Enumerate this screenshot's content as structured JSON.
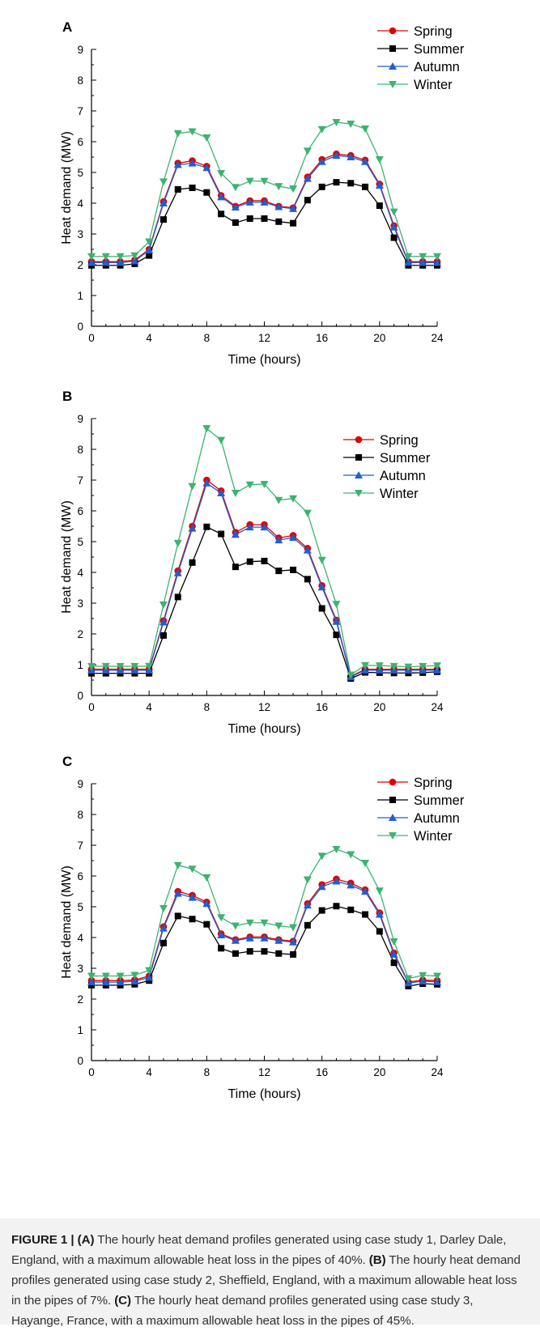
{
  "chart_data": [
    {
      "type": "line",
      "panel_label": "A",
      "xlabel": "Time (hours)",
      "ylabel": "Heat demand (MW)",
      "xlim": [
        0,
        24
      ],
      "ylim": [
        0,
        9
      ],
      "xticks": [
        0,
        4,
        8,
        12,
        16,
        20,
        24
      ],
      "yticks": [
        0,
        1,
        2,
        3,
        4,
        5,
        6,
        7,
        8,
        9
      ],
      "grid": false,
      "legend_position": "top-right",
      "x": [
        0,
        1,
        2,
        3,
        4,
        5,
        6,
        7,
        8,
        9,
        10,
        11,
        12,
        13,
        14,
        15,
        16,
        17,
        18,
        19,
        20,
        21,
        22,
        23,
        24
      ],
      "series": [
        {
          "name": "Spring",
          "color": "#e00000",
          "marker": "circle",
          "values": [
            2.1,
            2.1,
            2.1,
            2.15,
            2.5,
            4.05,
            5.3,
            5.38,
            5.2,
            4.25,
            3.9,
            4.08,
            4.08,
            3.9,
            3.85,
            4.85,
            5.42,
            5.6,
            5.55,
            5.4,
            4.62,
            3.27,
            2.1,
            2.1,
            2.1
          ]
        },
        {
          "name": "Summer",
          "color": "#000000",
          "marker": "square",
          "values": [
            1.98,
            1.98,
            1.98,
            2.03,
            2.3,
            3.47,
            4.45,
            4.5,
            4.35,
            3.65,
            3.37,
            3.5,
            3.5,
            3.4,
            3.35,
            4.1,
            4.53,
            4.68,
            4.65,
            4.53,
            3.92,
            2.88,
            1.98,
            1.98,
            1.98
          ]
        },
        {
          "name": "Autumn",
          "color": "#1f5fd0",
          "marker": "triangle-up",
          "values": [
            2.07,
            2.07,
            2.07,
            2.12,
            2.47,
            4.0,
            5.25,
            5.3,
            5.15,
            4.2,
            3.87,
            4.03,
            4.03,
            3.88,
            3.82,
            4.8,
            5.35,
            5.55,
            5.5,
            5.35,
            4.58,
            3.22,
            2.07,
            2.07,
            2.07
          ]
        },
        {
          "name": "Winter",
          "color": "#3cb371",
          "marker": "triangle-down",
          "values": [
            2.27,
            2.27,
            2.27,
            2.3,
            2.75,
            4.7,
            6.27,
            6.33,
            6.13,
            4.97,
            4.52,
            4.72,
            4.72,
            4.55,
            4.47,
            5.7,
            6.4,
            6.63,
            6.58,
            6.42,
            5.42,
            3.72,
            2.27,
            2.27,
            2.27
          ]
        }
      ]
    },
    {
      "type": "line",
      "panel_label": "B",
      "xlabel": "Time (hours)",
      "ylabel": "Heat demand (MW)",
      "xlim": [
        0,
        24
      ],
      "ylim": [
        0,
        9
      ],
      "xticks": [
        0,
        4,
        8,
        12,
        16,
        20,
        24
      ],
      "yticks": [
        0,
        1,
        2,
        3,
        4,
        5,
        6,
        7,
        8,
        9
      ],
      "grid": false,
      "legend_position": "top-right",
      "x": [
        0,
        1,
        2,
        3,
        4,
        5,
        6,
        7,
        8,
        9,
        10,
        11,
        12,
        13,
        14,
        15,
        16,
        17,
        18,
        19,
        20,
        21,
        22,
        23,
        24
      ],
      "series": [
        {
          "name": "Spring",
          "color": "#e00000",
          "marker": "circle",
          "values": [
            0.85,
            0.85,
            0.85,
            0.85,
            0.85,
            2.43,
            4.05,
            5.5,
            7.0,
            6.65,
            5.3,
            5.55,
            5.55,
            5.12,
            5.2,
            4.78,
            3.57,
            2.45,
            0.62,
            0.85,
            0.85,
            0.85,
            0.85,
            0.85,
            0.85
          ]
        },
        {
          "name": "Summer",
          "color": "#000000",
          "marker": "square",
          "values": [
            0.72,
            0.72,
            0.72,
            0.72,
            0.72,
            1.95,
            3.2,
            4.32,
            5.48,
            5.25,
            4.18,
            4.35,
            4.37,
            4.05,
            4.08,
            3.78,
            2.83,
            1.97,
            0.55,
            0.75,
            0.74,
            0.73,
            0.73,
            0.74,
            0.77
          ]
        },
        {
          "name": "Autumn",
          "color": "#1f5fd0",
          "marker": "triangle-up",
          "values": [
            0.82,
            0.82,
            0.82,
            0.82,
            0.82,
            2.38,
            3.98,
            5.43,
            6.9,
            6.58,
            5.23,
            5.47,
            5.47,
            5.05,
            5.13,
            4.72,
            3.52,
            2.4,
            0.6,
            0.82,
            0.82,
            0.82,
            0.82,
            0.82,
            0.82
          ]
        },
        {
          "name": "Winter",
          "color": "#3cb371",
          "marker": "triangle-down",
          "values": [
            0.95,
            0.95,
            0.95,
            0.95,
            0.95,
            2.95,
            4.95,
            6.8,
            8.68,
            8.3,
            6.58,
            6.85,
            6.87,
            6.35,
            6.4,
            5.93,
            4.4,
            2.97,
            0.67,
            0.98,
            0.97,
            0.95,
            0.93,
            0.95,
            0.97
          ]
        }
      ]
    },
    {
      "type": "line",
      "panel_label": "C",
      "xlabel": "Time (hours)",
      "ylabel": "Heat demand (MW)",
      "xlim": [
        0,
        24
      ],
      "ylim": [
        0,
        9
      ],
      "xticks": [
        0,
        4,
        8,
        12,
        16,
        20,
        24
      ],
      "yticks": [
        0,
        1,
        2,
        3,
        4,
        5,
        6,
        7,
        8,
        9
      ],
      "grid": false,
      "legend_position": "top-right",
      "x": [
        0,
        1,
        2,
        3,
        4,
        5,
        6,
        7,
        8,
        9,
        10,
        11,
        12,
        13,
        14,
        15,
        16,
        17,
        18,
        19,
        20,
        21,
        22,
        23,
        24
      ],
      "series": [
        {
          "name": "Spring",
          "color": "#e00000",
          "marker": "circle",
          "values": [
            2.6,
            2.6,
            2.6,
            2.62,
            2.75,
            4.35,
            5.5,
            5.37,
            5.15,
            4.12,
            3.93,
            4.02,
            4.02,
            3.93,
            3.88,
            5.1,
            5.72,
            5.9,
            5.77,
            5.55,
            4.8,
            3.5,
            2.55,
            2.62,
            2.6
          ]
        },
        {
          "name": "Summer",
          "color": "#000000",
          "marker": "square",
          "values": [
            2.45,
            2.45,
            2.45,
            2.48,
            2.6,
            3.82,
            4.7,
            4.6,
            4.43,
            3.65,
            3.48,
            3.55,
            3.55,
            3.48,
            3.45,
            4.4,
            4.88,
            5.02,
            4.9,
            4.75,
            4.2,
            3.18,
            2.42,
            2.5,
            2.48
          ]
        },
        {
          "name": "Autumn",
          "color": "#1f5fd0",
          "marker": "triangle-up",
          "values": [
            2.55,
            2.55,
            2.55,
            2.58,
            2.7,
            4.3,
            5.43,
            5.3,
            5.1,
            4.08,
            3.9,
            3.98,
            3.98,
            3.9,
            3.85,
            5.05,
            5.65,
            5.83,
            5.7,
            5.5,
            4.75,
            3.45,
            2.52,
            2.58,
            2.56
          ]
        },
        {
          "name": "Winter",
          "color": "#3cb371",
          "marker": "triangle-down",
          "values": [
            2.75,
            2.75,
            2.75,
            2.78,
            2.93,
            4.95,
            6.35,
            6.23,
            5.95,
            4.65,
            4.38,
            4.48,
            4.48,
            4.38,
            4.33,
            5.88,
            6.65,
            6.87,
            6.7,
            6.42,
            5.52,
            3.87,
            2.67,
            2.77,
            2.75
          ]
        }
      ]
    }
  ],
  "caption": {
    "figure_label": "FIGURE 1 | ",
    "a_label": "(A)",
    "a_text": " The hourly heat demand profiles generated using case study 1, Darley Dale, England, with a maximum allowable heat loss in the pipes of 40%. ",
    "b_label": "(B)",
    "b_text": " The hourly heat demand profiles generated using case study 2, Sheffield, England, with a maximum allowable heat loss in the pipes of 7%. ",
    "c_label": "(C)",
    "c_text": " The hourly heat demand profiles generated using case study 3, Hayange, France, with a maximum allowable heat loss in the pipes of 45%."
  }
}
